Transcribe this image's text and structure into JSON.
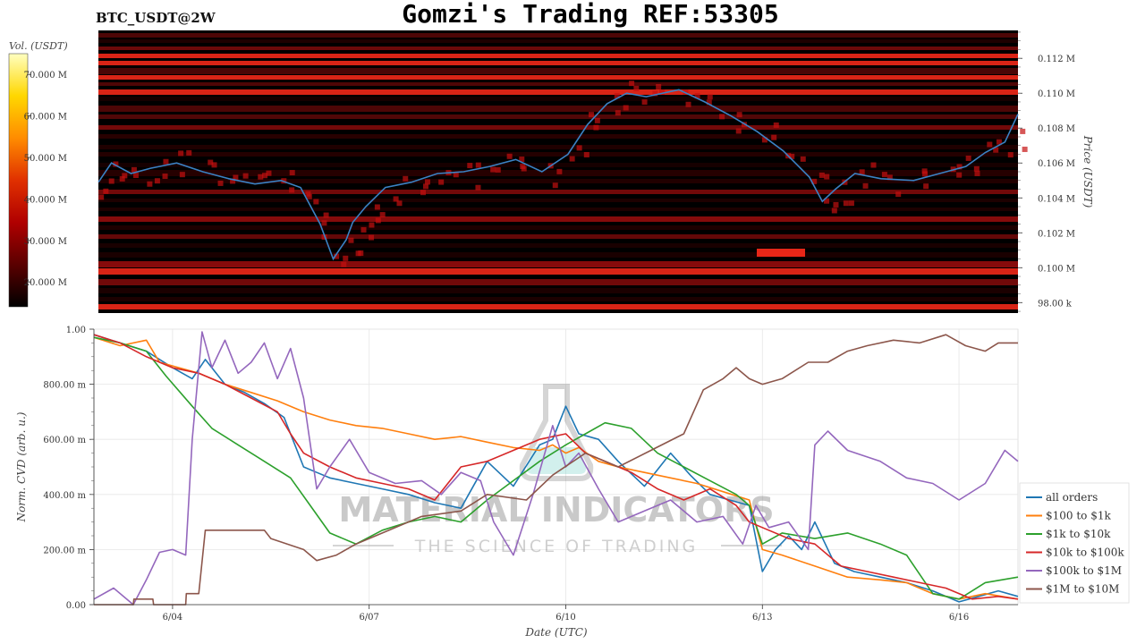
{
  "header": {
    "symbol": "BTC_USDT@2W",
    "title": "Gomzi's Trading REF:53305"
  },
  "colors": {
    "heatmap_bg": "#000000",
    "price_line": "#3b82c4",
    "heat_low": "#3a0000",
    "heat_mid": "#c41010",
    "heat_high": "#ff2a1a"
  },
  "watermark": {
    "brand": "MATERIAL INDICATORS",
    "tagline": "THE SCIENCE OF TRADING"
  },
  "chart_data": [
    {
      "type": "heatmap",
      "colorbar": {
        "label": "Vol. (USDT)",
        "ticks": [
          "20.000 M",
          "30.000 M",
          "40.000 M",
          "50.000 M",
          "60.000 M",
          "70.000 M"
        ],
        "tick_values": [
          20,
          30,
          40,
          50,
          60,
          70
        ],
        "range": [
          14,
          75
        ],
        "colors": [
          "#000000",
          "#5a0000",
          "#b00000",
          "#e03000",
          "#ff8c00",
          "#ffd700",
          "#ffffc0"
        ]
      },
      "y_axis": {
        "label": "Price (USDT)",
        "ticks": [
          "98.00 k",
          "0.100 M",
          "0.102 M",
          "0.104 M",
          "0.106 M",
          "0.108 M",
          "0.110 M",
          "0.112 M"
        ],
        "tick_values": [
          98000,
          100000,
          102000,
          104000,
          106000,
          108000,
          110000,
          112000
        ],
        "range": [
          97400,
          113600
        ]
      },
      "x_range": [
        0,
        14.1
      ],
      "price_series": {
        "name": "BTC_USDT price",
        "x": [
          0,
          0.2,
          0.5,
          0.8,
          1.2,
          1.6,
          2.0,
          2.4,
          2.8,
          3.1,
          3.4,
          3.6,
          3.8,
          3.9,
          4.1,
          4.4,
          4.8,
          5.2,
          5.6,
          6.0,
          6.4,
          6.8,
          7.2,
          7.5,
          7.8,
          8.1,
          8.4,
          8.9,
          9.3,
          9.7,
          10.1,
          10.5,
          10.9,
          11.1,
          11.3,
          11.6,
          12.0,
          12.5,
          13.0,
          13.3,
          13.6,
          13.9,
          14.1
        ],
        "y": [
          104900,
          106000,
          105400,
          105700,
          106000,
          105500,
          105100,
          104800,
          105000,
          104600,
          102500,
          100500,
          101600,
          102600,
          103500,
          104600,
          104900,
          105400,
          105500,
          105800,
          106200,
          105500,
          106500,
          108200,
          109400,
          110000,
          109800,
          110200,
          109500,
          108700,
          107800,
          106700,
          105200,
          103800,
          104500,
          105400,
          105100,
          105000,
          105500,
          105800,
          106600,
          107200,
          108800
        ]
      }
    },
    {
      "type": "line",
      "xlabel": "Date (UTC)",
      "ylabel": "Norm. CVD (arb. u.)",
      "x_ticks": [
        "6/04",
        "6/07",
        "6/10",
        "6/13",
        "6/16"
      ],
      "x_tick_values": [
        1.2,
        4.2,
        7.2,
        10.2,
        13.2
      ],
      "xlim": [
        0,
        14.1
      ],
      "y_ticks": [
        "0.00",
        "200.00 m",
        "400.00 m",
        "600.00 m",
        "800.00 m",
        "1.00"
      ],
      "y_tick_values": [
        0,
        0.2,
        0.4,
        0.6,
        0.8,
        1.0
      ],
      "ylim": [
        0,
        1
      ],
      "grid": true,
      "legend_position": "bottom-right",
      "series": [
        {
          "name": "all orders",
          "color": "#1f77b4",
          "x": [
            0,
            0.4,
            0.8,
            1.2,
            1.5,
            1.7,
            2.0,
            2.3,
            2.6,
            2.9,
            3.2,
            3.4,
            3.6,
            4.0,
            4.4,
            4.8,
            5.2,
            5.6,
            6.0,
            6.4,
            6.8,
            7.0,
            7.2,
            7.4,
            7.7,
            8.0,
            8.4,
            8.8,
            9.1,
            9.4,
            9.7,
            10.0,
            10.2,
            10.4,
            10.6,
            10.8,
            11.0,
            11.3,
            11.6,
            12.0,
            12.4,
            12.8,
            13.2,
            13.5,
            13.8,
            14.1
          ],
          "y": [
            0.98,
            0.95,
            0.92,
            0.86,
            0.82,
            0.89,
            0.8,
            0.77,
            0.73,
            0.68,
            0.5,
            0.48,
            0.46,
            0.44,
            0.42,
            0.4,
            0.37,
            0.35,
            0.52,
            0.43,
            0.58,
            0.6,
            0.72,
            0.62,
            0.6,
            0.52,
            0.43,
            0.55,
            0.47,
            0.4,
            0.38,
            0.36,
            0.12,
            0.2,
            0.25,
            0.2,
            0.3,
            0.15,
            0.12,
            0.1,
            0.08,
            0.05,
            0.01,
            0.03,
            0.05,
            0.03
          ]
        },
        {
          "name": "$100 to $1k",
          "color": "#ff7f0e",
          "x": [
            0,
            0.4,
            0.8,
            1.0,
            1.3,
            1.6,
            2.0,
            2.4,
            2.8,
            3.2,
            3.6,
            4.0,
            4.4,
            4.8,
            5.2,
            5.6,
            6.0,
            6.4,
            6.8,
            7.0,
            7.2,
            7.4,
            7.7,
            8.0,
            8.4,
            8.8,
            9.2,
            9.6,
            10.0,
            10.2,
            10.5,
            11.0,
            11.5,
            12.0,
            12.4,
            12.8,
            13.2,
            13.6,
            14.1
          ],
          "y": [
            0.97,
            0.94,
            0.96,
            0.88,
            0.86,
            0.84,
            0.8,
            0.77,
            0.74,
            0.7,
            0.67,
            0.65,
            0.64,
            0.62,
            0.6,
            0.61,
            0.59,
            0.57,
            0.56,
            0.58,
            0.55,
            0.57,
            0.52,
            0.5,
            0.48,
            0.46,
            0.44,
            0.41,
            0.38,
            0.2,
            0.18,
            0.14,
            0.1,
            0.09,
            0.08,
            0.04,
            0.02,
            0.04,
            0.02
          ]
        },
        {
          "name": "$1k to $10k",
          "color": "#2ca02c",
          "x": [
            0,
            0.4,
            0.8,
            1.1,
            1.5,
            1.8,
            2.2,
            2.6,
            3.0,
            3.3,
            3.6,
            4.0,
            4.4,
            4.8,
            5.2,
            5.6,
            6.0,
            6.4,
            6.8,
            7.2,
            7.5,
            7.8,
            8.2,
            8.6,
            9.0,
            9.4,
            9.8,
            10.0,
            10.2,
            10.5,
            11.0,
            11.5,
            12.0,
            12.4,
            12.8,
            13.2,
            13.6,
            14.1
          ],
          "y": [
            0.97,
            0.95,
            0.92,
            0.83,
            0.72,
            0.64,
            0.58,
            0.52,
            0.46,
            0.36,
            0.26,
            0.22,
            0.27,
            0.3,
            0.32,
            0.3,
            0.38,
            0.45,
            0.52,
            0.58,
            0.62,
            0.66,
            0.64,
            0.55,
            0.5,
            0.45,
            0.4,
            0.36,
            0.22,
            0.26,
            0.24,
            0.26,
            0.22,
            0.18,
            0.04,
            0.02,
            0.08,
            0.1
          ]
        },
        {
          "name": "$10k to $100k",
          "color": "#d62728",
          "x": [
            0,
            0.4,
            0.8,
            1.2,
            1.6,
            2.0,
            2.4,
            2.8,
            3.0,
            3.2,
            3.6,
            4.0,
            4.4,
            4.8,
            5.2,
            5.6,
            6.0,
            6.4,
            6.8,
            7.2,
            7.5,
            7.8,
            8.2,
            8.6,
            9.0,
            9.4,
            9.8,
            10.0,
            10.2,
            10.6,
            11.0,
            11.4,
            11.8,
            12.2,
            12.6,
            13.0,
            13.4,
            13.8,
            14.1
          ],
          "y": [
            0.98,
            0.95,
            0.9,
            0.86,
            0.84,
            0.8,
            0.75,
            0.7,
            0.62,
            0.55,
            0.5,
            0.46,
            0.44,
            0.42,
            0.38,
            0.5,
            0.52,
            0.56,
            0.6,
            0.62,
            0.55,
            0.52,
            0.48,
            0.42,
            0.38,
            0.42,
            0.36,
            0.3,
            0.28,
            0.24,
            0.22,
            0.14,
            0.12,
            0.1,
            0.08,
            0.06,
            0.02,
            0.03,
            0.02
          ]
        },
        {
          "name": "$100k to $1M",
          "color": "#9467bd",
          "x": [
            0,
            0.3,
            0.6,
            0.8,
            1.0,
            1.2,
            1.4,
            1.5,
            1.65,
            1.8,
            2.0,
            2.2,
            2.4,
            2.6,
            2.8,
            3.0,
            3.2,
            3.4,
            3.6,
            3.9,
            4.2,
            4.6,
            5.0,
            5.3,
            5.6,
            5.9,
            6.1,
            6.4,
            6.7,
            7.0,
            7.2,
            7.4,
            7.7,
            8.0,
            8.4,
            8.8,
            9.2,
            9.6,
            9.9,
            10.1,
            10.3,
            10.6,
            10.9,
            11.0,
            11.2,
            11.5,
            12.0,
            12.4,
            12.8,
            13.2,
            13.6,
            13.9,
            14.1
          ],
          "y": [
            0.02,
            0.06,
            0.0,
            0.09,
            0.19,
            0.2,
            0.18,
            0.6,
            0.99,
            0.86,
            0.96,
            0.84,
            0.88,
            0.95,
            0.82,
            0.93,
            0.75,
            0.42,
            0.5,
            0.6,
            0.48,
            0.44,
            0.45,
            0.4,
            0.48,
            0.45,
            0.3,
            0.18,
            0.4,
            0.65,
            0.5,
            0.55,
            0.42,
            0.3,
            0.34,
            0.38,
            0.3,
            0.32,
            0.22,
            0.36,
            0.28,
            0.3,
            0.2,
            0.58,
            0.63,
            0.56,
            0.52,
            0.46,
            0.44,
            0.38,
            0.44,
            0.56,
            0.52
          ]
        },
        {
          "name": "$1M to $10M",
          "color": "#8c564b",
          "x": [
            0,
            0.6,
            0.61,
            0.9,
            0.91,
            1.4,
            1.41,
            1.6,
            1.7,
            2.6,
            2.7,
            3.2,
            3.4,
            3.7,
            4.0,
            4.6,
            5.0,
            5.6,
            6.0,
            6.6,
            7.0,
            7.5,
            8.0,
            8.5,
            9.0,
            9.3,
            9.6,
            9.8,
            10.0,
            10.2,
            10.5,
            10.9,
            11.2,
            11.5,
            11.8,
            12.2,
            12.6,
            13.0,
            13.3,
            13.6,
            13.8,
            14.1
          ],
          "y": [
            0.0,
            0.0,
            0.02,
            0.02,
            0.0,
            0.0,
            0.04,
            0.04,
            0.27,
            0.27,
            0.24,
            0.2,
            0.16,
            0.18,
            0.22,
            0.28,
            0.32,
            0.34,
            0.4,
            0.38,
            0.47,
            0.55,
            0.5,
            0.56,
            0.62,
            0.78,
            0.82,
            0.86,
            0.82,
            0.8,
            0.82,
            0.88,
            0.88,
            0.92,
            0.94,
            0.96,
            0.95,
            0.98,
            0.94,
            0.92,
            0.95,
            0.95
          ]
        }
      ]
    }
  ]
}
